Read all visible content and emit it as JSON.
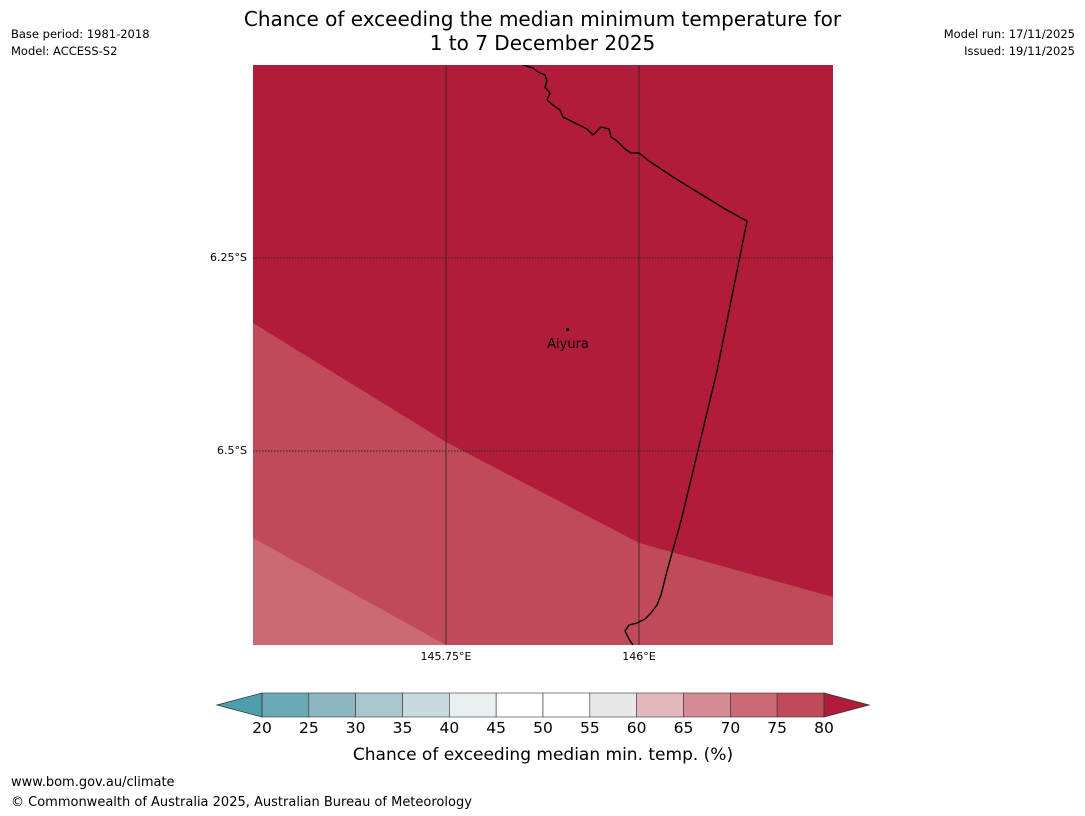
{
  "header": {
    "title_line1": "Chance of exceeding the median minimum temperature for",
    "title_line2": "1 to 7 December 2025",
    "base_period": "Base period: 1981-2018",
    "model": "Model: ACCESS-S2",
    "model_run": "Model run: 17/11/2025",
    "issued": "Issued: 19/11/2025"
  },
  "map": {
    "place_label": "Aiyura",
    "lat_labels": [
      "6.25°S",
      "6.5°S"
    ],
    "lon_labels": [
      "145.75°E",
      "146°E"
    ],
    "colors": {
      "band_80_plus": "#b01c3a",
      "band_75_80": "#c04a58",
      "band_70_75": "#cb6a74"
    }
  },
  "colorbar": {
    "ticks": [
      "20",
      "25",
      "30",
      "35",
      "40",
      "45",
      "50",
      "55",
      "60",
      "65",
      "70",
      "75",
      "80"
    ],
    "segment_colors": [
      "#6aaab7",
      "#8bb6c2",
      "#a8c6cc",
      "#c8dadd",
      "#e8f0f2",
      "#ffffff",
      "#ffffff",
      "#e8e8e8",
      "#e3b8bc",
      "#d48b93",
      "#cb6a74",
      "#c04a58"
    ],
    "low_extend_color": "#4e9fae",
    "high_extend_color": "#b01c3a",
    "label": "Chance of exceeding median min. temp. (%)"
  },
  "footer": {
    "url": "www.bom.gov.au/climate",
    "copyright": "© Commonwealth of Australia 2025, Australian Bureau of Meteorology"
  }
}
